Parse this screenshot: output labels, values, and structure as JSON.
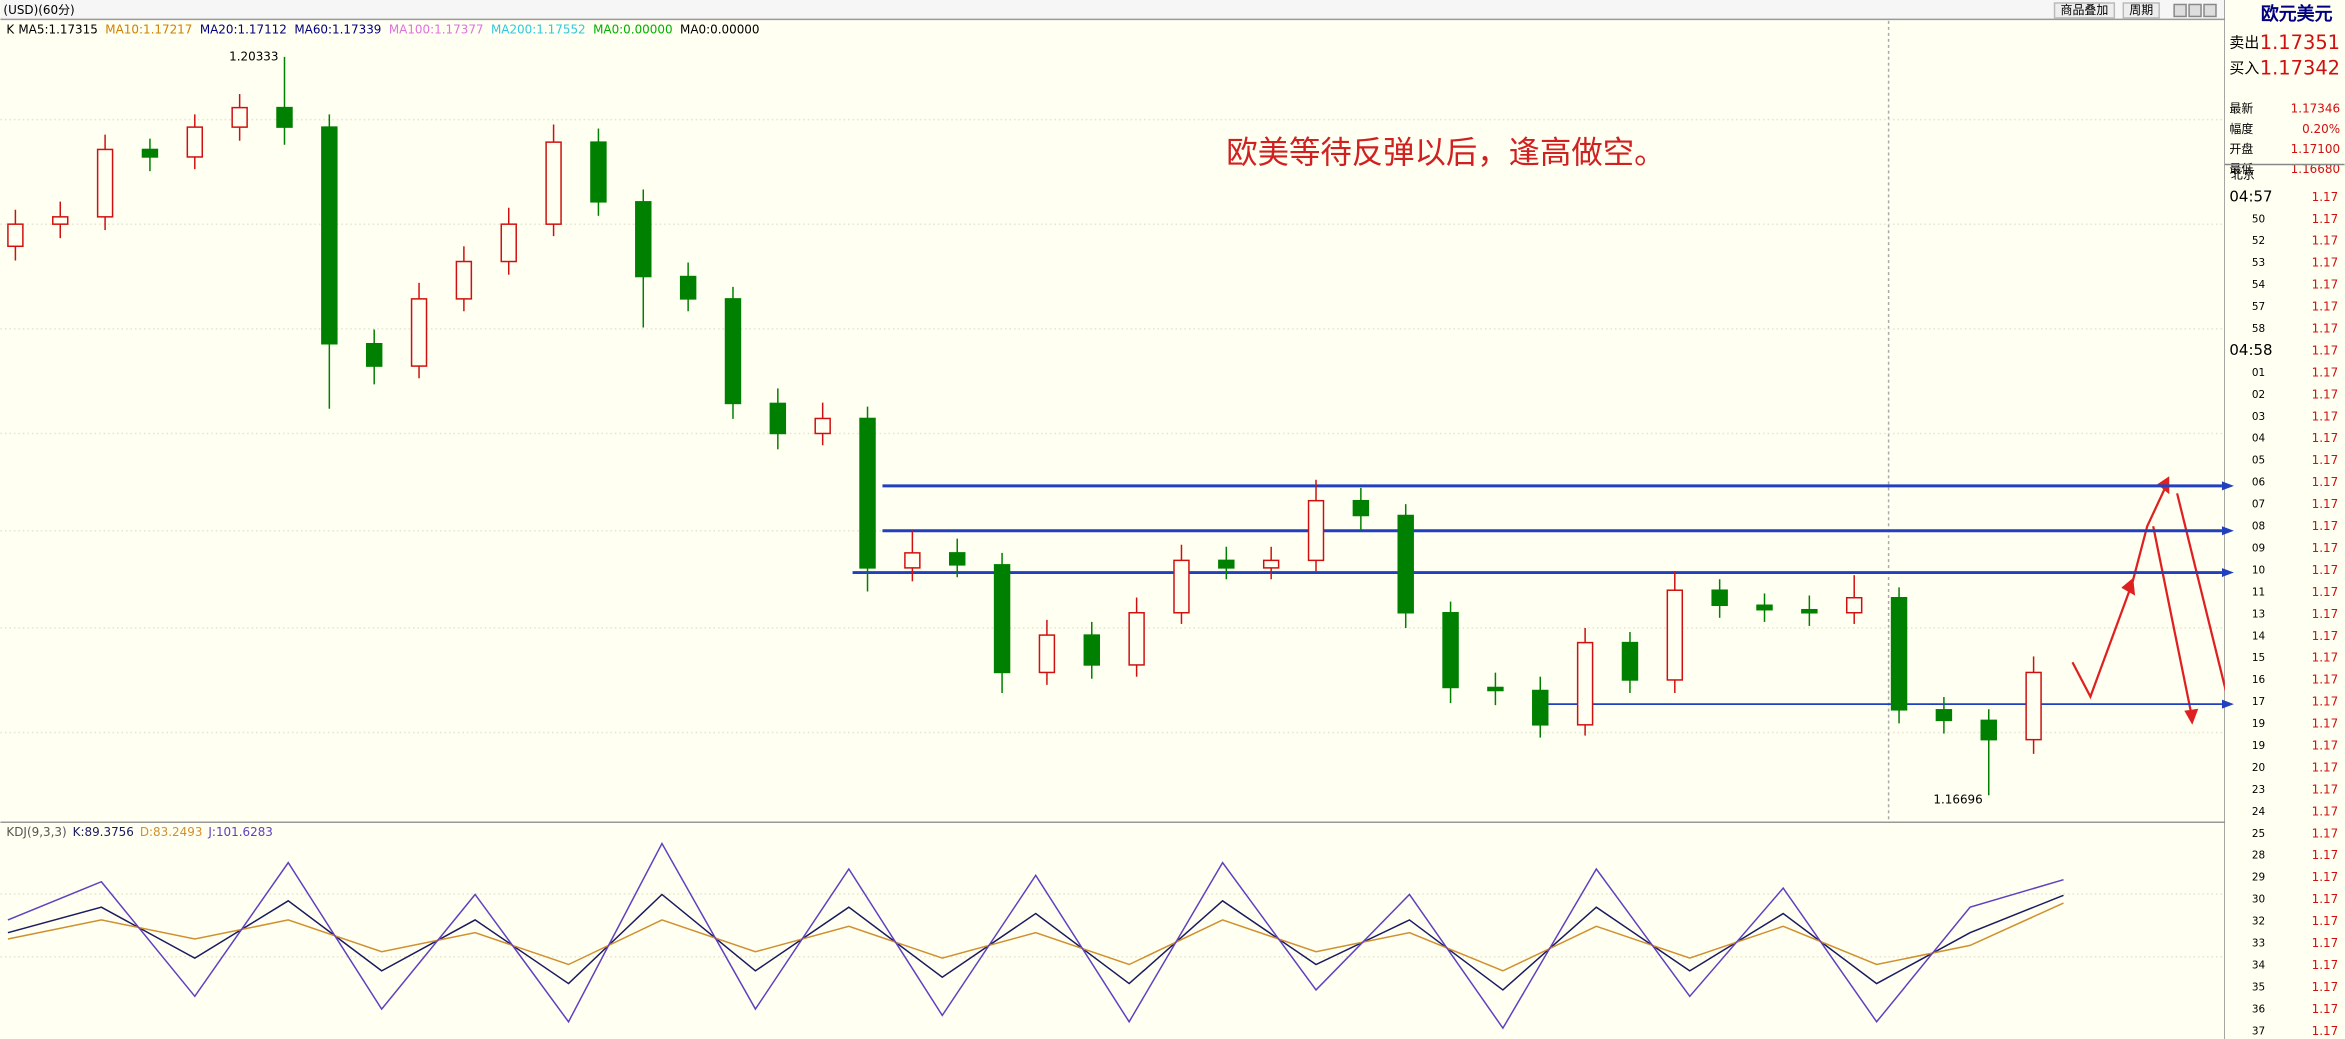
{
  "toolbar": {
    "symbol": "(USD)(60分)",
    "overlay": "商品叠加",
    "period": "周期"
  },
  "chart_data": [
    {
      "type": "candlestick",
      "label": "K",
      "legend": [
        {
          "name": "MA5:1.17315",
          "color": "#000000"
        },
        {
          "name": "MA10:1.17217",
          "color": "#d08000"
        },
        {
          "name": "MA20:1.17112",
          "color": "#000080"
        },
        {
          "name": "MA60:1.17339",
          "color": "#000080"
        },
        {
          "name": "MA100:1.17377",
          "color": "#e070e0"
        },
        {
          "name": "MA200:1.17552",
          "color": "#30c8e0"
        },
        {
          "name": "MA0:0.00000",
          "color": "#00b000"
        },
        {
          "name": "MA0:0.00000",
          "color": "#000000"
        }
      ],
      "open": [
        1.194,
        1.19509,
        1.19545,
        1.19877,
        1.1984,
        1.19987,
        1.20083,
        1.19987,
        1.1892,
        1.1881,
        1.19141,
        1.19325,
        1.19509,
        1.19913,
        1.19619,
        1.19251,
        1.19141,
        1.18626,
        1.18478,
        1.18552,
        1.17816,
        1.1789,
        1.17831,
        1.17301,
        1.17485,
        1.17338,
        1.17595,
        1.17853,
        1.17816,
        1.17853,
        1.18147,
        1.18074,
        1.17595,
        1.17227,
        1.17212,
        1.17043,
        1.17448,
        1.17264,
        1.17706,
        1.17632,
        1.1761,
        1.17595,
        1.17669,
        1.17117,
        1.17065,
        1.1697
      ],
      "high": [
        1.1958,
        1.1962,
        1.1995,
        1.1993,
        1.2005,
        1.2015,
        1.20333,
        1.2005,
        1.1899,
        1.1922,
        1.194,
        1.1959,
        1.2,
        1.1998,
        1.1968,
        1.1932,
        1.192,
        1.187,
        1.1863,
        1.1861,
        1.18,
        1.1796,
        1.1789,
        1.1756,
        1.1755,
        1.1767,
        1.1793,
        1.1792,
        1.1792,
        1.1825,
        1.1821,
        1.1813,
        1.1765,
        1.173,
        1.1728,
        1.1752,
        1.175,
        1.178,
        1.1776,
        1.1769,
        1.1768,
        1.1778,
        1.1772,
        1.1718,
        1.1712,
        1.1738
      ],
      "low": [
        1.1933,
        1.1944,
        1.1948,
        1.1977,
        1.1978,
        1.1992,
        1.199,
        1.186,
        1.1872,
        1.1875,
        1.1908,
        1.1926,
        1.1945,
        1.1955,
        1.19,
        1.1908,
        1.1855,
        1.184,
        1.1842,
        1.177,
        1.1775,
        1.1777,
        1.172,
        1.1724,
        1.1727,
        1.1728,
        1.1754,
        1.1776,
        1.1776,
        1.178,
        1.18,
        1.1752,
        1.1715,
        1.1714,
        1.1698,
        1.1699,
        1.172,
        1.172,
        1.1757,
        1.1755,
        1.1753,
        1.1754,
        1.1705,
        1.17,
        1.16696,
        1.169
      ],
      "close": [
        1.19509,
        1.19545,
        1.19877,
        1.1984,
        1.19987,
        1.20083,
        1.19987,
        1.1892,
        1.1881,
        1.19141,
        1.19325,
        1.19509,
        1.19913,
        1.19619,
        1.19251,
        1.19141,
        1.18626,
        1.18478,
        1.18552,
        1.17816,
        1.1789,
        1.17831,
        1.17301,
        1.17485,
        1.17338,
        1.17595,
        1.17853,
        1.17816,
        1.17853,
        1.18147,
        1.18074,
        1.17595,
        1.17227,
        1.17212,
        1.17043,
        1.17448,
        1.17264,
        1.17706,
        1.17632,
        1.1761,
        1.17595,
        1.17669,
        1.17117,
        1.17065,
        1.1697,
        1.17301
      ],
      "up_color": "#d01010",
      "down_color": "#008000",
      "ylim": [
        1.16578,
        1.2051
      ],
      "high_label": "1.20333",
      "low_label": "1.16696",
      "annotation": "欧美等待反弹以后，逢高做空。",
      "levels": [
        1.1822,
        1.17999,
        1.17793,
        1.17145
      ],
      "level_color": "#2040c0"
    },
    {
      "type": "line",
      "title": "KDJ(9,3,3)",
      "ylim": [
        -20,
        135
      ],
      "series": [
        {
          "name": "K:89.3756",
          "color": "#1a1a60",
          "values": [
            60,
            80,
            40,
            85,
            30,
            70,
            20,
            90,
            30,
            80,
            25,
            75,
            20,
            85,
            35,
            70,
            15,
            80,
            30,
            75,
            20,
            60,
            89.3756
          ]
        },
        {
          "name": "D:83.2493",
          "color": "#d09030",
          "values": [
            55,
            70,
            55,
            70,
            45,
            60,
            35,
            70,
            45,
            65,
            40,
            60,
            35,
            70,
            45,
            60,
            30,
            65,
            40,
            65,
            35,
            50,
            83.2493
          ]
        },
        {
          "name": "J:101.6283",
          "color": "#6040c0",
          "values": [
            70,
            100,
            10,
            115,
            0,
            90,
            -10,
            130,
            0,
            110,
            -5,
            105,
            -10,
            115,
            15,
            90,
            -15,
            110,
            10,
            95,
            -10,
            80,
            101.6283
          ]
        }
      ]
    }
  ],
  "quote": {
    "title": "欧元美元",
    "rows": [
      [
        "卖出",
        "1.17351"
      ],
      [
        "买入",
        "1.17342"
      ],
      [
        "最新",
        "1.17346"
      ],
      [
        "幅度",
        "0.20%"
      ],
      [
        "开盘",
        "1.17100"
      ],
      [
        "最低",
        "1.16680"
      ]
    ],
    "time_header": "北京",
    "ticks": [
      [
        "04:57",
        "1.17"
      ],
      [
        "50",
        "1.17"
      ],
      [
        "52",
        "1.17"
      ],
      [
        "53",
        "1.17"
      ],
      [
        "54",
        "1.17"
      ],
      [
        "57",
        "1.17"
      ],
      [
        "58",
        "1.17"
      ],
      [
        "04:58",
        "1.17"
      ],
      [
        "01",
        "1.17"
      ],
      [
        "02",
        "1.17"
      ],
      [
        "03",
        "1.17"
      ],
      [
        "04",
        "1.17"
      ],
      [
        "05",
        "1.17"
      ],
      [
        "06",
        "1.17"
      ],
      [
        "07",
        "1.17"
      ],
      [
        "08",
        "1.17"
      ],
      [
        "09",
        "1.17"
      ],
      [
        "10",
        "1.17"
      ],
      [
        "11",
        "1.17"
      ],
      [
        "13",
        "1.17"
      ],
      [
        "14",
        "1.17"
      ],
      [
        "15",
        "1.17"
      ],
      [
        "16",
        "1.17"
      ],
      [
        "17",
        "1.17"
      ],
      [
        "19",
        "1.17"
      ],
      [
        "19",
        "1.17"
      ],
      [
        "20",
        "1.17"
      ],
      [
        "23",
        "1.17"
      ],
      [
        "24",
        "1.17"
      ],
      [
        "25",
        "1.17"
      ],
      [
        "28",
        "1.17"
      ],
      [
        "29",
        "1.17"
      ],
      [
        "30",
        "1.17"
      ],
      [
        "32",
        "1.17"
      ],
      [
        "33",
        "1.17"
      ],
      [
        "34",
        "1.17"
      ],
      [
        "35",
        "1.17"
      ],
      [
        "36",
        "1.17"
      ],
      [
        "37",
        "1.17"
      ]
    ]
  }
}
